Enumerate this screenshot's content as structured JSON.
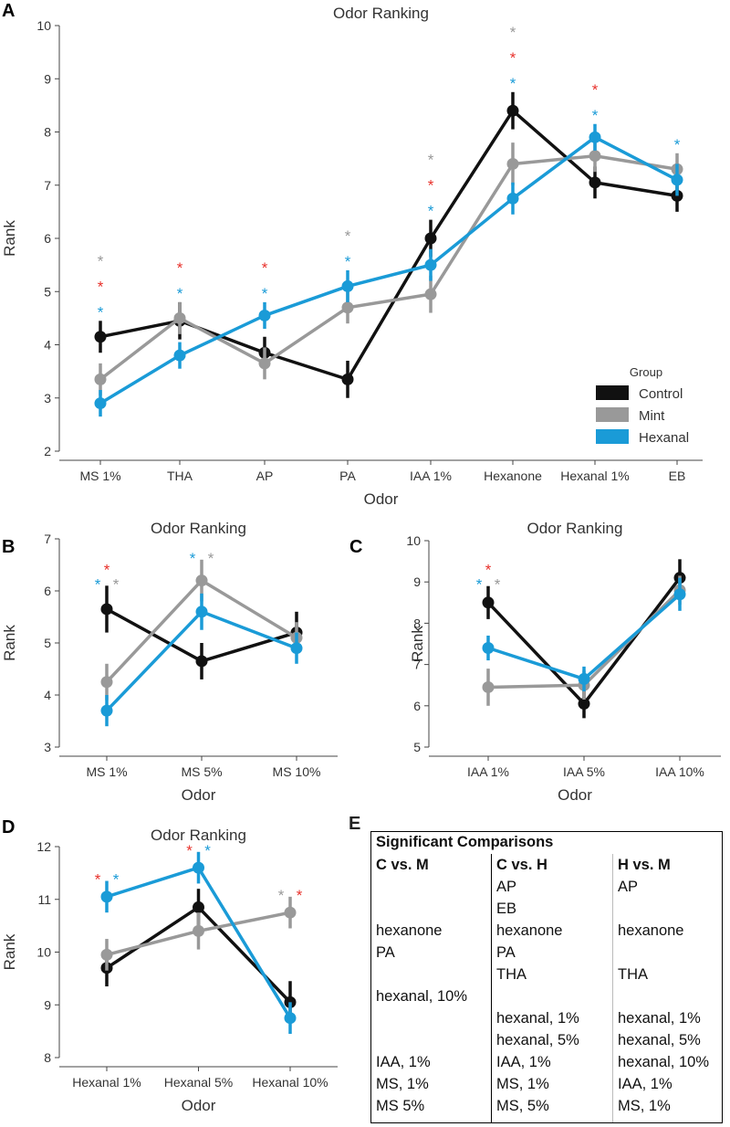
{
  "colors": {
    "Control": "#111111",
    "Mint": "#999999",
    "Hexanal": "#1a9bd7",
    "star_red": "#e8322c"
  },
  "legend": {
    "title": "Group",
    "entries": [
      "Control",
      "Mint",
      "Hexanal"
    ]
  },
  "chart_data": [
    {
      "panel": "A",
      "type": "line",
      "title": "Odor Ranking",
      "xlabel": "Odor",
      "ylabel": "Rank",
      "ylim": [
        2,
        10
      ],
      "yticks": [
        2,
        3,
        4,
        5,
        6,
        7,
        8,
        9,
        10
      ],
      "categories": [
        "MS 1%",
        "THA",
        "AP",
        "PA",
        "IAA 1%",
        "Hexanone",
        "Hexanal 1%",
        "EB"
      ],
      "series": [
        {
          "name": "Control",
          "values": [
            4.15,
            4.45,
            3.85,
            3.35,
            6.0,
            8.4,
            7.05,
            6.8
          ],
          "errors": [
            0.3,
            0.35,
            0.3,
            0.35,
            0.35,
            0.35,
            0.3,
            0.3
          ]
        },
        {
          "name": "Mint",
          "values": [
            3.35,
            4.5,
            3.65,
            4.7,
            4.95,
            7.4,
            7.55,
            7.3
          ],
          "errors": [
            0.3,
            0.3,
            0.3,
            0.3,
            0.35,
            0.4,
            0.3,
            0.3
          ]
        },
        {
          "name": "Hexanal",
          "values": [
            2.9,
            3.8,
            4.55,
            5.1,
            5.5,
            6.75,
            7.9,
            7.1
          ],
          "errors": [
            0.25,
            0.25,
            0.25,
            0.3,
            0.3,
            0.3,
            0.25,
            0.3
          ]
        }
      ],
      "significance": [
        {
          "category": "MS 1%",
          "stars": [
            "Mint",
            "red",
            "Hexanal"
          ]
        },
        {
          "category": "THA",
          "stars": [
            "red",
            "Hexanal"
          ]
        },
        {
          "category": "AP",
          "stars": [
            "red",
            "Hexanal"
          ]
        },
        {
          "category": "PA",
          "stars": [
            "Mint",
            "Hexanal"
          ]
        },
        {
          "category": "IAA 1%",
          "stars": [
            "Mint",
            "red",
            "Hexanal"
          ]
        },
        {
          "category": "Hexanone",
          "stars": [
            "Mint",
            "red",
            "Hexanal"
          ]
        },
        {
          "category": "Hexanal 1%",
          "stars": [
            "red",
            "Hexanal"
          ]
        },
        {
          "category": "EB",
          "stars": [
            "Hexanal"
          ]
        }
      ]
    },
    {
      "panel": "B",
      "type": "line",
      "title": "Odor Ranking",
      "xlabel": "Odor",
      "ylabel": "Rank",
      "ylim": [
        3,
        7
      ],
      "yticks": [
        3,
        4,
        5,
        6,
        7
      ],
      "categories": [
        "MS 1%",
        "MS 5%",
        "MS 10%"
      ],
      "series": [
        {
          "name": "Control",
          "values": [
            5.65,
            4.65,
            5.2
          ],
          "errors": [
            0.45,
            0.35,
            0.4
          ]
        },
        {
          "name": "Mint",
          "values": [
            4.25,
            6.2,
            5.1
          ],
          "errors": [
            0.35,
            0.4,
            0.3
          ]
        },
        {
          "name": "Hexanal",
          "values": [
            3.7,
            5.6,
            4.9
          ],
          "errors": [
            0.3,
            0.35,
            0.3
          ]
        }
      ],
      "significance": [
        {
          "category": "MS 1%",
          "stars": [
            "red"
          ],
          "pair": [
            "Hexanal",
            "Mint"
          ]
        },
        {
          "category": "MS 5%",
          "stars": [],
          "pair": [
            "Hexanal",
            "Mint"
          ]
        }
      ]
    },
    {
      "panel": "C",
      "type": "line",
      "title": "Odor Ranking",
      "xlabel": "Odor",
      "ylabel": "Rank",
      "ylim": [
        5,
        10
      ],
      "yticks": [
        5,
        6,
        7,
        8,
        9,
        10
      ],
      "categories": [
        "IAA 1%",
        "IAA 5%",
        "IAA 10%"
      ],
      "series": [
        {
          "name": "Control",
          "values": [
            8.5,
            6.05,
            9.1
          ],
          "errors": [
            0.4,
            0.35,
            0.45
          ]
        },
        {
          "name": "Mint",
          "values": [
            6.45,
            6.5,
            8.8
          ],
          "errors": [
            0.45,
            0.35,
            0.35
          ]
        },
        {
          "name": "Hexanal",
          "values": [
            7.4,
            6.65,
            8.7
          ],
          "errors": [
            0.3,
            0.3,
            0.4
          ]
        }
      ],
      "significance": [
        {
          "category": "IAA 1%",
          "stars": [
            "red"
          ],
          "pair": [
            "Hexanal",
            "Mint"
          ]
        }
      ]
    },
    {
      "panel": "D",
      "type": "line",
      "title": "Odor Ranking",
      "xlabel": "Odor",
      "ylabel": "Rank",
      "ylim": [
        8,
        12
      ],
      "yticks": [
        8,
        9,
        10,
        11,
        12
      ],
      "categories": [
        "Hexanal 1%",
        "Hexanal 5%",
        "Hexanal 10%"
      ],
      "series": [
        {
          "name": "Control",
          "values": [
            9.7,
            10.85,
            9.05
          ],
          "errors": [
            0.35,
            0.35,
            0.4
          ]
        },
        {
          "name": "Mint",
          "values": [
            9.95,
            10.4,
            10.75
          ],
          "errors": [
            0.3,
            0.35,
            0.3
          ]
        },
        {
          "name": "Hexanal",
          "values": [
            11.05,
            11.6,
            8.75
          ],
          "errors": [
            0.3,
            0.3,
            0.3
          ]
        }
      ],
      "significance": [
        {
          "category": "Hexanal 1%",
          "stars": [],
          "pair": [
            "red",
            "Hexanal"
          ]
        },
        {
          "category": "Hexanal 5%",
          "stars": [],
          "pair": [
            "red",
            "Hexanal"
          ]
        },
        {
          "category": "Hexanal 10%",
          "stars": [],
          "pair": [
            "Mint",
            "red"
          ]
        }
      ]
    }
  ],
  "table_e": {
    "panel": "E",
    "title": "Significant Comparisons",
    "columns": [
      {
        "header": "C vs. M",
        "rows": [
          "",
          "",
          "hexanone",
          "PA",
          "",
          "hexanal, 10%",
          "",
          "",
          "IAA, 1%",
          "MS, 1%",
          "MS 5%"
        ]
      },
      {
        "header": "C vs. H",
        "rows": [
          "AP",
          "EB",
          "hexanone",
          "PA",
          "THA",
          "",
          "hexanal, 1%",
          "hexanal, 5%",
          "IAA, 1%",
          "MS, 1%",
          "MS, 5%"
        ]
      },
      {
        "header": "H vs. M",
        "rows": [
          "AP",
          "",
          "hexanone",
          "",
          "THA",
          "",
          "hexanal, 1%",
          "hexanal, 5%",
          "hexanal, 10%",
          "IAA, 1%",
          "MS, 1%"
        ]
      }
    ]
  }
}
